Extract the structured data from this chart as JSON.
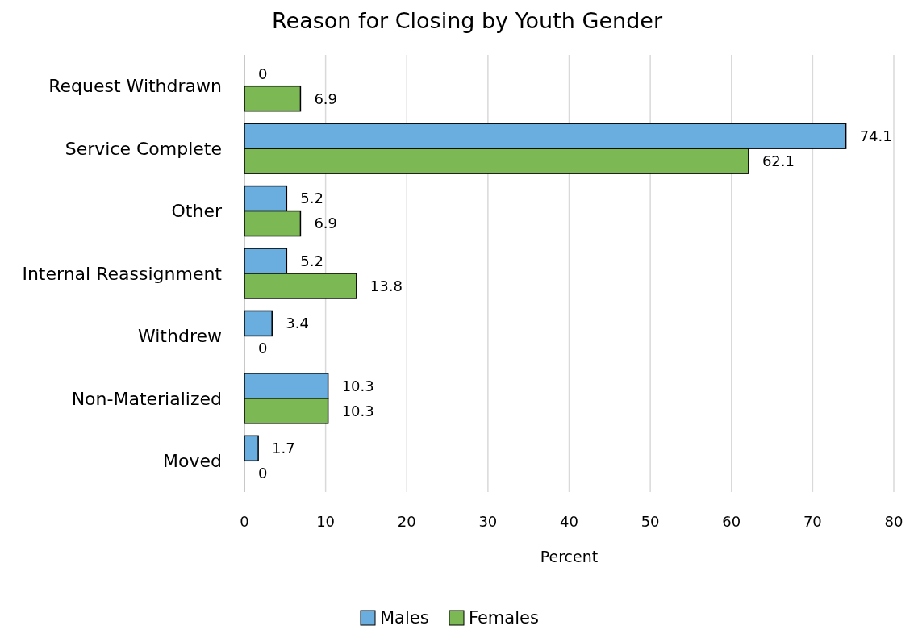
{
  "chart_data": {
    "type": "bar",
    "orientation": "horizontal",
    "title": "Reason for Closing by Youth Gender",
    "xlabel": "Percent",
    "categories": [
      "Request Withdrawn",
      "Service Complete",
      "Other",
      "Internal Reassignment",
      "Withdrew",
      "Non-Materialized",
      "Moved"
    ],
    "series": [
      {
        "name": "Males",
        "color": "#6aaee0",
        "values": [
          0,
          74.1,
          5.2,
          5.2,
          3.4,
          10.3,
          1.7
        ]
      },
      {
        "name": "Females",
        "color": "#7cb955",
        "values": [
          6.9,
          62.1,
          6.9,
          13.8,
          0,
          10.3,
          0
        ]
      }
    ],
    "xlim": [
      0,
      80
    ],
    "xticks": [
      0,
      10,
      20,
      30,
      40,
      50,
      60,
      70,
      80
    ],
    "grid": "x",
    "legend": "bottom",
    "data_labels": true
  }
}
